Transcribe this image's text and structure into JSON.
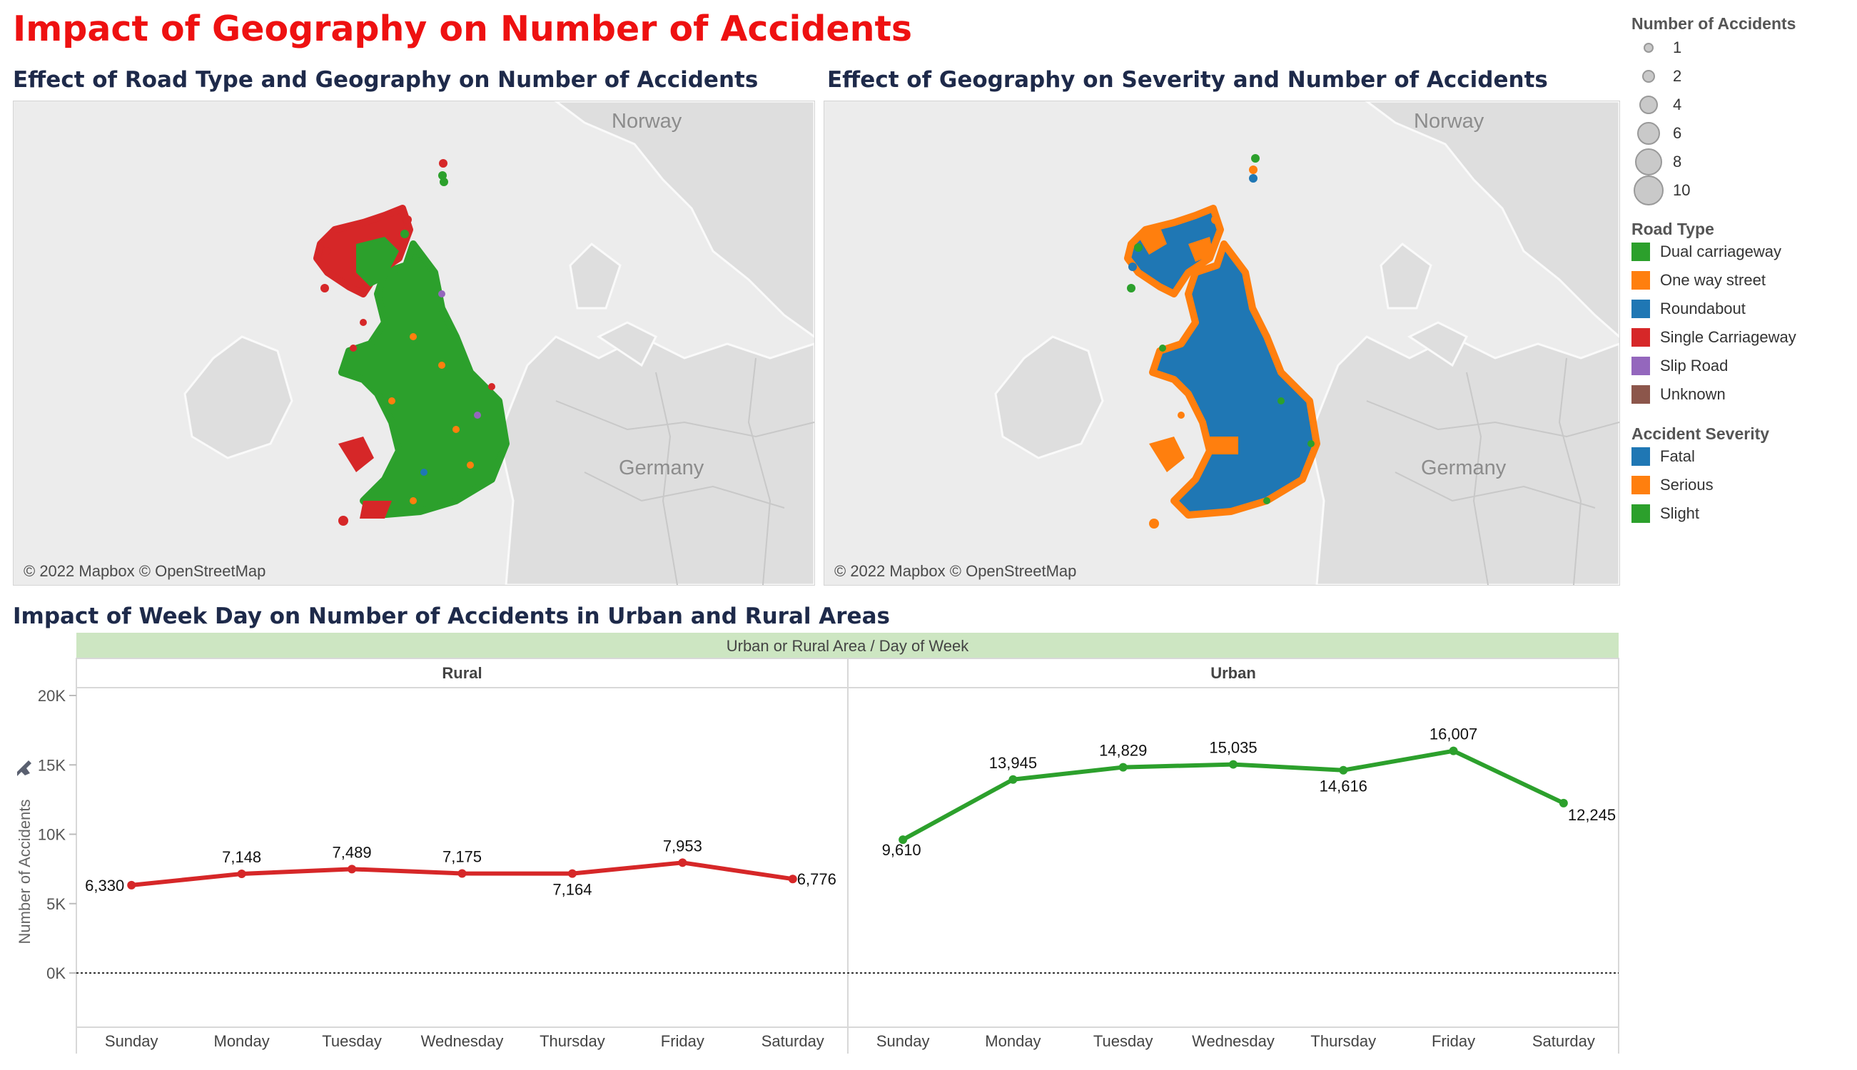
{
  "page": {
    "title": "Impact of Geography on Number of Accidents"
  },
  "maps": [
    {
      "title": "Effect of Road Type and Geography on Number of Accidents",
      "labels": [
        "Norway",
        "Germany"
      ],
      "credit": "© 2022 Mapbox © OpenStreetMap"
    },
    {
      "title": "Effect of Geography on Severity and Number of Accidents",
      "labels": [
        "Norway",
        "Germany"
      ],
      "credit": "© 2022 Mapbox © OpenStreetMap"
    }
  ],
  "legend": {
    "size": {
      "title": "Number of Accidents",
      "items": [
        "1",
        "2",
        "4",
        "6",
        "8",
        "10"
      ]
    },
    "road_type": {
      "title": "Road Type",
      "items": [
        {
          "label": "Dual carriageway",
          "color": "#2ca02c"
        },
        {
          "label": "One way street",
          "color": "#ff7f0e"
        },
        {
          "label": "Roundabout",
          "color": "#1f77b4"
        },
        {
          "label": "Single Carriageway",
          "color": "#d62728"
        },
        {
          "label": "Slip Road",
          "color": "#9467bd"
        },
        {
          "label": "Unknown",
          "color": "#8c564b"
        }
      ]
    },
    "severity": {
      "title": "Accident Severity",
      "items": [
        {
          "label": "Fatal",
          "color": "#1f77b4"
        },
        {
          "label": "Serious",
          "color": "#ff7f0e"
        },
        {
          "label": "Slight",
          "color": "#2ca02c"
        }
      ]
    }
  },
  "line_chart": {
    "title": "Impact of Week Day on Number of Accidents in Urban and Rural Areas",
    "header": "Urban or Rural Area  /  Day of Week"
  },
  "chart_data": {
    "type": "line",
    "title": "Impact of Week Day on Number of Accidents in Urban and Rural Areas",
    "ylabel": "Number of Accidents",
    "ylim": [
      -4500,
      20000
    ],
    "yticks": [
      0,
      5000,
      10000,
      15000,
      20000
    ],
    "ytick_labels": [
      "0K",
      "5K",
      "10K",
      "15K",
      "20K"
    ],
    "categories": [
      "Sunday",
      "Monday",
      "Tuesday",
      "Wednesday",
      "Thursday",
      "Friday",
      "Saturday"
    ],
    "reference_line": 0,
    "panels": [
      {
        "name": "Rural",
        "color": "#d62728",
        "values": [
          6330,
          7148,
          7489,
          7175,
          7164,
          7953,
          6776
        ],
        "labels": [
          "6,330",
          "7,148",
          "7,489",
          "7,175",
          "7,164",
          "7,953",
          "6,776"
        ]
      },
      {
        "name": "Urban",
        "color": "#2ca02c",
        "values": [
          9610,
          13945,
          14829,
          15035,
          14616,
          16007,
          12245
        ],
        "labels": [
          "9,610",
          "13,945",
          "14,829",
          "15,035",
          "14,616",
          "16,007",
          "12,245"
        ]
      }
    ]
  }
}
